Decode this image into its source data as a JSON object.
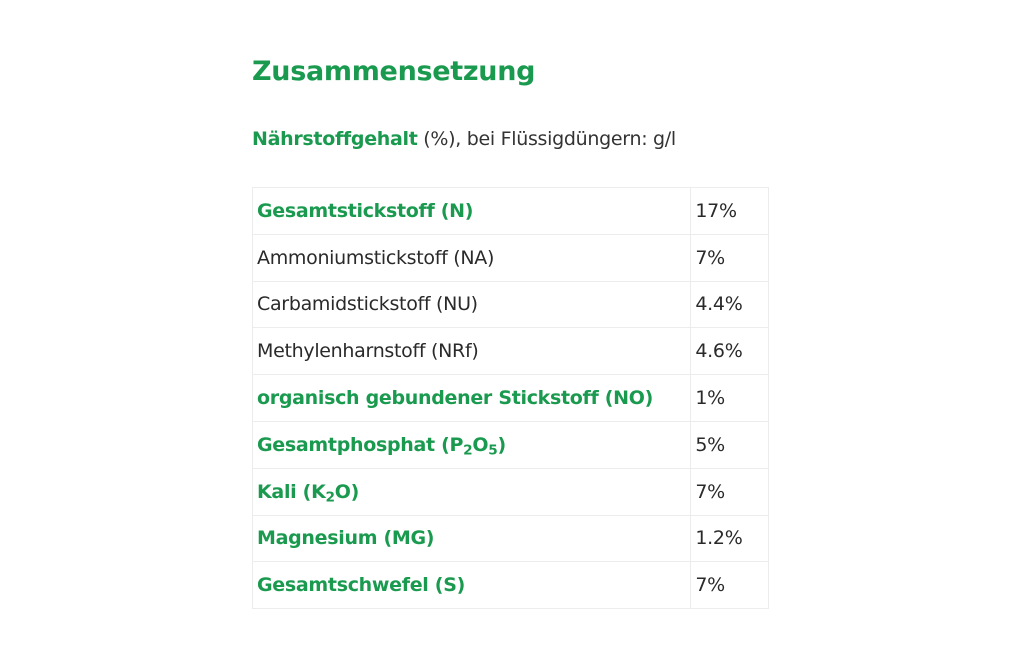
{
  "section": {
    "title": "Zusammensetzung",
    "subtitle_strong": "Nährstoffgehalt",
    "subtitle_rest": " (%), bei Flüssigdüngern: g/l"
  },
  "colors": {
    "accent_green": "#1a9a4f",
    "text": "#2a2a2a",
    "border": "#ececec"
  },
  "table": {
    "rows": [
      {
        "name": "Gesamtstickstoff (N)",
        "value": "17%",
        "highlight": true
      },
      {
        "name": "Ammoniumstickstoff (NA)",
        "value": "7%",
        "highlight": false
      },
      {
        "name": "Carbamidstickstoff (NU)",
        "value": "4.4%",
        "highlight": false
      },
      {
        "name": "Methylenharnstoff (NRf)",
        "value": "4.6%",
        "highlight": false
      },
      {
        "name": "organisch gebundener Stickstoff (NO)",
        "value": "1%",
        "highlight": true
      },
      {
        "name_pre": "Gesamtphosphat (P",
        "name_sub1": "2",
        "name_mid": "O",
        "name_sub2": "5",
        "name_post": ")",
        "value": "5%",
        "highlight": true
      },
      {
        "name_pre": "Kali (K",
        "name_sub1": "2",
        "name_post": "O)",
        "value": "7%",
        "highlight": true
      },
      {
        "name": "Magnesium (MG)",
        "value": "1.2%",
        "highlight": true
      },
      {
        "name": "Gesamtschwefel (S)",
        "value": "7%",
        "highlight": true
      }
    ]
  }
}
